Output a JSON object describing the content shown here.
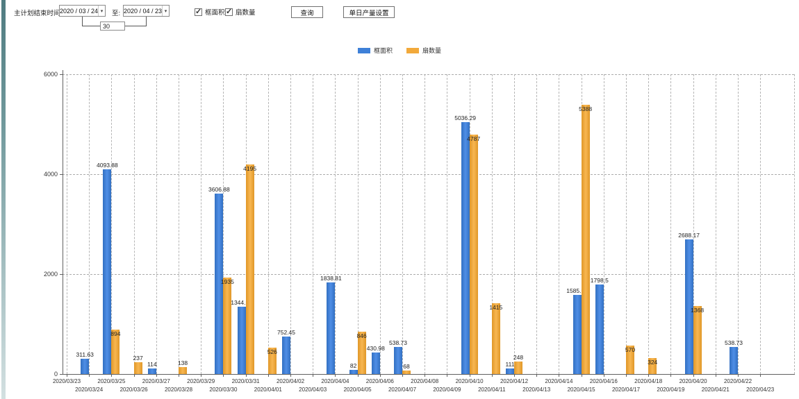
{
  "toolbar": {
    "end_time_label": "主计划结束时间:",
    "date_from": "2020 / 03 / 24",
    "to_label": "至:",
    "date_to": "2020 / 04 / 23",
    "interval_value": "30",
    "checkbox1_label": "框面积",
    "checkbox2_label": "扇数量",
    "checkbox1_checked": true,
    "checkbox2_checked": true,
    "query_button_label": "查询",
    "daily_output_button_label": "单日产量设置"
  },
  "legend": {
    "items": [
      {
        "label": "框面积",
        "color": "#3e80d8"
      },
      {
        "label": "扇数量",
        "color": "#f2a93b"
      }
    ]
  },
  "chart_data": {
    "type": "bar",
    "title": "",
    "xlabel": "",
    "ylabel": "",
    "ylim": [
      0,
      6000
    ],
    "yticks": [
      0,
      2000,
      4000,
      6000
    ],
    "grid": "dashed",
    "legend_position": "top",
    "categories": [
      "2020/03/23",
      "2020/03/24",
      "2020/03/25",
      "2020/03/26",
      "2020/03/27",
      "2020/03/28",
      "2020/03/29",
      "2020/03/30",
      "2020/03/31",
      "2020/04/01",
      "2020/04/02",
      "2020/04/03",
      "2020/04/04",
      "2020/04/05",
      "2020/04/06",
      "2020/04/07",
      "2020/04/08",
      "2020/04/09",
      "2020/04/10",
      "2020/04/11",
      "2020/04/12",
      "2020/04/13",
      "2020/04/14",
      "2020/04/15",
      "2020/04/16",
      "2020/04/17",
      "2020/04/18",
      "2020/04/19",
      "2020/04/20",
      "2020/04/21",
      "2020/04/22",
      "2020/04/23"
    ],
    "series": [
      {
        "name": "框面积",
        "color": "#3e80d8",
        "values": [
          null,
          311.63,
          4093.88,
          null,
          114,
          null,
          null,
          3606.88,
          1344.95,
          null,
          752.45,
          null,
          1838.81,
          82,
          430.98,
          538.73,
          null,
          null,
          5036.29,
          null,
          111,
          null,
          null,
          1585.96,
          1798.5,
          null,
          null,
          null,
          2688.17,
          null,
          538.73,
          null
        ]
      },
      {
        "name": "扇数量",
        "color": "#f2a93b",
        "values": [
          null,
          null,
          894,
          237,
          null,
          138,
          null,
          1935,
          4195,
          526,
          null,
          null,
          null,
          846,
          null,
          68,
          null,
          null,
          4787,
          1415,
          248,
          null,
          null,
          5388,
          null,
          570,
          324,
          null,
          1368,
          null,
          null,
          null
        ]
      }
    ]
  }
}
